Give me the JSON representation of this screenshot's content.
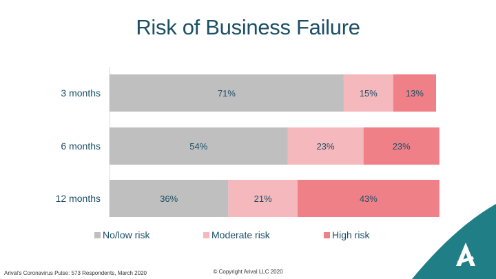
{
  "chart_data": {
    "type": "bar",
    "orientation": "horizontal",
    "stacked": true,
    "title": "Risk of Business Failure",
    "categories": [
      "3 months",
      "6 months",
      "12 months"
    ],
    "series": [
      {
        "name": "No/low risk",
        "values": [
          71,
          54,
          36
        ],
        "labels": [
          "71%",
          "54%",
          "36%"
        ],
        "color": "#bfbfbf"
      },
      {
        "name": "Moderate risk",
        "values": [
          15,
          23,
          21
        ],
        "labels": [
          "15%",
          "23%",
          "21%"
        ],
        "color": "#f5b8bd"
      },
      {
        "name": "High risk",
        "values": [
          13,
          23,
          43
        ],
        "labels": [
          "13%",
          "23%",
          "43%"
        ],
        "color": "#f08088"
      }
    ],
    "xlim": [
      0,
      99
    ],
    "legend": "bottom",
    "grid": false
  },
  "footer": {
    "source": "Arival's Coronavirus Pulse: 573 Respondents, March 2020",
    "copyright": "© Copyright Arival LLC 2020"
  },
  "colors": {
    "title": "#1b4f66",
    "label_text": "#1b4f66",
    "corner_teal": "#1f7e86"
  },
  "logo": {
    "icon": "arival-logo-icon"
  }
}
